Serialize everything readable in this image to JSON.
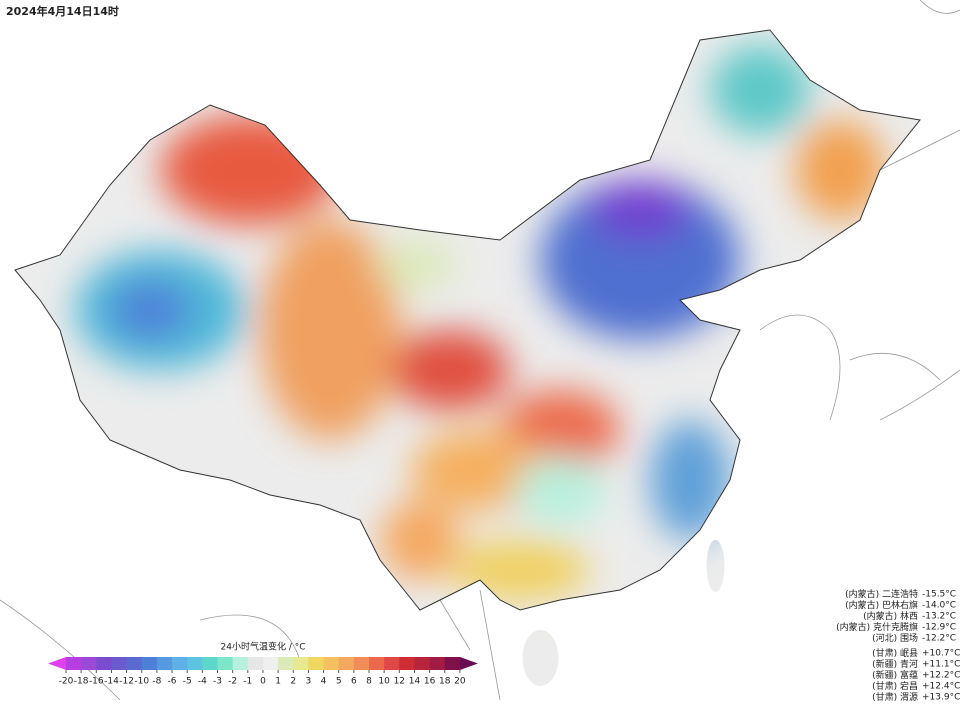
{
  "title": "2024年4月14日14时",
  "colorbar": {
    "label": "24小时气温变化 / °C",
    "ticks": [
      -20,
      -18,
      -16,
      -14,
      -12,
      -10,
      -8,
      -6,
      -5,
      -4,
      -3,
      -2,
      -1,
      0,
      1,
      2,
      3,
      4,
      5,
      6,
      8,
      10,
      12,
      14,
      16,
      18,
      20
    ],
    "colors": [
      "#b63ee0",
      "#9b4ad8",
      "#7c4cd0",
      "#6a5acd",
      "#5b6ad0",
      "#4f80d8",
      "#5599e0",
      "#5fb0e6",
      "#5cc4e0",
      "#5fd6cc",
      "#7ee6c8",
      "#b8f0de",
      "#e6e6e6",
      "#efefef",
      "#dce9b8",
      "#e8e890",
      "#f0d860",
      "#f5c060",
      "#f5a860",
      "#f28c58",
      "#ec6a4c",
      "#e04848",
      "#d02c34",
      "#b8243c",
      "#a01c44",
      "#80104a"
    ],
    "under_color": "#e040f0",
    "over_color": "#6a0a50"
  },
  "drops": [
    {
      "region": "(内蒙古)",
      "name": "二连浩特",
      "value": "-15.5°C"
    },
    {
      "region": "(内蒙古)",
      "name": "巴林右旗",
      "value": "-14.0°C"
    },
    {
      "region": "(内蒙古)",
      "name": "林西",
      "value": "-13.2°C"
    },
    {
      "region": "(内蒙古)",
      "name": "克什克腾旗",
      "value": "-12.9°C"
    },
    {
      "region": "(河北)",
      "name": "围场",
      "value": "-12.2°C"
    }
  ],
  "rises": [
    {
      "region": "(甘肃)",
      "name": "岷县",
      "value": "+10.7°C"
    },
    {
      "region": "(新疆)",
      "name": "青河",
      "value": "+11.1°C"
    },
    {
      "region": "(新疆)",
      "name": "富蕴",
      "value": "+12.2°C"
    },
    {
      "region": "(甘肃)",
      "name": "宕昌",
      "value": "+12.4°C"
    },
    {
      "region": "(甘肃)",
      "name": "渭源",
      "value": "+13.9°C"
    }
  ]
}
